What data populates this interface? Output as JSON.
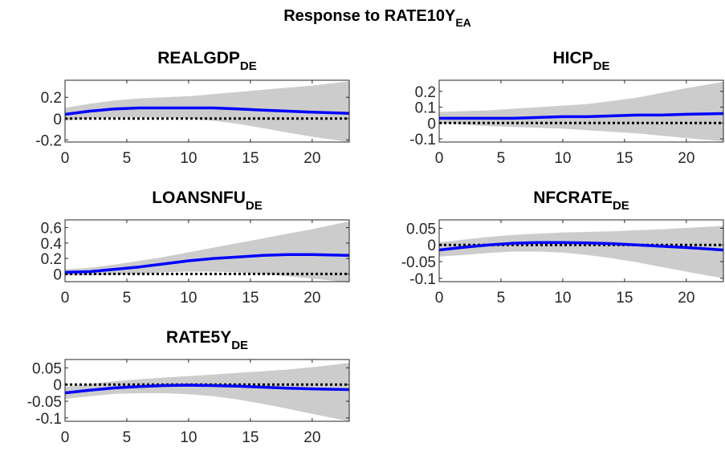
{
  "figure": {
    "title_main": "Response to RATE10Y",
    "title_sub": "EA"
  },
  "chart_data": [
    {
      "type": "line",
      "title_main": "REALGDP",
      "title_sub": "DE",
      "xlim": [
        0,
        23
      ],
      "ylim": [
        -0.22,
        0.36
      ],
      "xticks": [
        0,
        5,
        10,
        15,
        20
      ],
      "yticks": [
        -0.2,
        0,
        0.2
      ],
      "ytick_labels": [
        "-0.2",
        "0",
        "0.2"
      ],
      "grid": false,
      "x": [
        0,
        2,
        4,
        6,
        8,
        10,
        12,
        14,
        16,
        18,
        20,
        23
      ],
      "series": [
        {
          "role": "response",
          "color": "#0000ff",
          "values": [
            0.04,
            0.07,
            0.09,
            0.1,
            0.1,
            0.1,
            0.1,
            0.09,
            0.08,
            0.07,
            0.06,
            0.05
          ]
        },
        {
          "role": "upper band",
          "color": "#cccccc",
          "values": [
            0.1,
            0.14,
            0.17,
            0.19,
            0.2,
            0.21,
            0.23,
            0.25,
            0.27,
            0.29,
            0.31,
            0.35
          ]
        },
        {
          "role": "lower band",
          "color": "#cccccc",
          "values": [
            -0.02,
            0.0,
            0.01,
            0.01,
            0.01,
            0.0,
            -0.02,
            -0.05,
            -0.09,
            -0.13,
            -0.17,
            -0.22
          ]
        },
        {
          "role": "zero line",
          "color": "#000000",
          "values": [
            0,
            0,
            0,
            0,
            0,
            0,
            0,
            0,
            0,
            0,
            0,
            0
          ]
        }
      ]
    },
    {
      "type": "line",
      "title_main": "HICP",
      "title_sub": "DE",
      "xlim": [
        0,
        23
      ],
      "ylim": [
        -0.12,
        0.27
      ],
      "xticks": [
        0,
        5,
        10,
        15,
        20
      ],
      "yticks": [
        -0.1,
        0,
        0.1,
        0.2
      ],
      "ytick_labels": [
        "-0.1",
        "0",
        "0.1",
        "0.2"
      ],
      "grid": false,
      "x": [
        0,
        2,
        4,
        6,
        8,
        10,
        12,
        14,
        16,
        18,
        20,
        23
      ],
      "series": [
        {
          "role": "response",
          "color": "#0000ff",
          "values": [
            0.03,
            0.03,
            0.03,
            0.03,
            0.035,
            0.04,
            0.04,
            0.045,
            0.05,
            0.05,
            0.055,
            0.06
          ]
        },
        {
          "role": "upper band",
          "color": "#cccccc",
          "values": [
            0.07,
            0.075,
            0.08,
            0.09,
            0.1,
            0.11,
            0.12,
            0.14,
            0.16,
            0.19,
            0.22,
            0.26
          ]
        },
        {
          "role": "lower band",
          "color": "#cccccc",
          "values": [
            0.0,
            -0.01,
            -0.02,
            -0.025,
            -0.03,
            -0.035,
            -0.045,
            -0.055,
            -0.065,
            -0.08,
            -0.095,
            -0.115
          ]
        },
        {
          "role": "zero line",
          "color": "#000000",
          "values": [
            0,
            0,
            0,
            0,
            0,
            0,
            0,
            0,
            0,
            0,
            0,
            0
          ]
        }
      ]
    },
    {
      "type": "line",
      "title_main": "LOANSNFU",
      "title_sub": "DE",
      "xlim": [
        0,
        23
      ],
      "ylim": [
        -0.1,
        0.7
      ],
      "xticks": [
        0,
        5,
        10,
        15,
        20
      ],
      "yticks": [
        0,
        0.2,
        0.4,
        0.6
      ],
      "ytick_labels": [
        "0",
        "0.2",
        "0.4",
        "0.6"
      ],
      "grid": false,
      "x": [
        0,
        2,
        4,
        6,
        8,
        10,
        12,
        14,
        16,
        18,
        20,
        23
      ],
      "series": [
        {
          "role": "response",
          "color": "#0000ff",
          "values": [
            0.02,
            0.03,
            0.06,
            0.09,
            0.13,
            0.17,
            0.2,
            0.22,
            0.24,
            0.25,
            0.25,
            0.24
          ]
        },
        {
          "role": "upper band",
          "color": "#cccccc",
          "values": [
            0.06,
            0.08,
            0.12,
            0.17,
            0.22,
            0.28,
            0.34,
            0.4,
            0.46,
            0.52,
            0.58,
            0.68
          ]
        },
        {
          "role": "lower band",
          "color": "#cccccc",
          "values": [
            -0.02,
            -0.02,
            -0.01,
            0.0,
            0.02,
            0.03,
            0.03,
            0.02,
            0.0,
            -0.03,
            -0.06,
            -0.11
          ]
        },
        {
          "role": "zero line",
          "color": "#000000",
          "values": [
            0,
            0,
            0,
            0,
            0,
            0,
            0,
            0,
            0,
            0,
            0,
            0
          ]
        }
      ]
    },
    {
      "type": "line",
      "title_main": "NFCRATE",
      "title_sub": "DE",
      "xlim": [
        0,
        23
      ],
      "ylim": [
        -0.11,
        0.075
      ],
      "xticks": [
        0,
        5,
        10,
        15,
        20
      ],
      "yticks": [
        -0.1,
        -0.05,
        0,
        0.05
      ],
      "ytick_labels": [
        "-0.1",
        "-0.05",
        "0",
        "0.05"
      ],
      "grid": false,
      "x": [
        0,
        2,
        4,
        6,
        8,
        10,
        12,
        14,
        16,
        18,
        20,
        23
      ],
      "series": [
        {
          "role": "response",
          "color": "#0000ff",
          "values": [
            -0.015,
            -0.007,
            0.0,
            0.005,
            0.007,
            0.007,
            0.006,
            0.004,
            0.0,
            -0.004,
            -0.008,
            -0.015
          ]
        },
        {
          "role": "upper band",
          "color": "#cccccc",
          "values": [
            0.008,
            0.016,
            0.024,
            0.03,
            0.034,
            0.037,
            0.039,
            0.041,
            0.044,
            0.047,
            0.051,
            0.057
          ]
        },
        {
          "role": "lower band",
          "color": "#cccccc",
          "values": [
            -0.035,
            -0.03,
            -0.024,
            -0.02,
            -0.02,
            -0.023,
            -0.03,
            -0.04,
            -0.052,
            -0.066,
            -0.08,
            -0.1
          ]
        },
        {
          "role": "zero line",
          "color": "#000000",
          "values": [
            0,
            0,
            0,
            0,
            0,
            0,
            0,
            0,
            0,
            0,
            0,
            0
          ]
        }
      ]
    },
    {
      "type": "line",
      "title_main": "RATE5Y",
      "title_sub": "DE",
      "xlim": [
        0,
        23
      ],
      "ylim": [
        -0.11,
        0.075
      ],
      "xticks": [
        0,
        5,
        10,
        15,
        20
      ],
      "yticks": [
        -0.1,
        -0.05,
        0,
        0.05
      ],
      "ytick_labels": [
        "-0.1",
        "-0.05",
        "0",
        "0.05"
      ],
      "grid": false,
      "x": [
        0,
        2,
        4,
        6,
        8,
        10,
        12,
        14,
        16,
        18,
        20,
        23
      ],
      "series": [
        {
          "role": "response",
          "color": "#0000ff",
          "values": [
            -0.025,
            -0.017,
            -0.01,
            -0.006,
            -0.003,
            -0.002,
            -0.003,
            -0.005,
            -0.008,
            -0.011,
            -0.013,
            -0.015
          ]
        },
        {
          "role": "upper band",
          "color": "#cccccc",
          "values": [
            -0.007,
            0.002,
            0.01,
            0.016,
            0.021,
            0.025,
            0.03,
            0.035,
            0.04,
            0.045,
            0.052,
            0.065
          ]
        },
        {
          "role": "lower band",
          "color": "#cccccc",
          "values": [
            -0.043,
            -0.035,
            -0.028,
            -0.026,
            -0.026,
            -0.029,
            -0.035,
            -0.045,
            -0.058,
            -0.072,
            -0.088,
            -0.11
          ]
        },
        {
          "role": "zero line",
          "color": "#000000",
          "values": [
            0,
            0,
            0,
            0,
            0,
            0,
            0,
            0,
            0,
            0,
            0,
            0
          ]
        }
      ]
    }
  ]
}
